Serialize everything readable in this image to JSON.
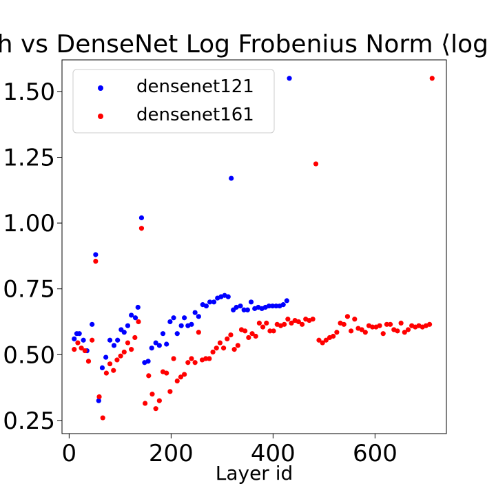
{
  "chart_data": {
    "type": "scatter",
    "title": "th vs DenseNet Log Frobenius Norm ⟨log ‖",
    "xlabel": "Layer id",
    "ylabel": "",
    "xlim": [
      -14,
      740
    ],
    "ylim": [
      0.2,
      1.62
    ],
    "x_ticks": [
      0,
      200,
      400,
      600
    ],
    "x_tick_labels": [
      "0",
      "200",
      "400",
      "600"
    ],
    "y_ticks": [
      0.25,
      0.5,
      0.75,
      1.0,
      1.25,
      1.5
    ],
    "y_tick_labels": [
      "0.25",
      "0.50",
      "0.75",
      "1.00",
      "1.25",
      "1.50"
    ],
    "grid": false,
    "legend_position": "top-left",
    "series": [
      {
        "name": "densenet121",
        "color": "#0000ff",
        "points": [
          [
            10,
            0.56
          ],
          [
            15,
            0.58
          ],
          [
            20,
            0.58
          ],
          [
            28,
            0.555
          ],
          [
            35,
            0.515
          ],
          [
            45,
            0.615
          ],
          [
            52,
            0.88
          ],
          [
            58,
            0.325
          ],
          [
            65,
            0.45
          ],
          [
            72,
            0.49
          ],
          [
            80,
            0.555
          ],
          [
            88,
            0.535
          ],
          [
            95,
            0.555
          ],
          [
            102,
            0.595
          ],
          [
            108,
            0.585
          ],
          [
            115,
            0.61
          ],
          [
            122,
            0.65
          ],
          [
            130,
            0.64
          ],
          [
            135,
            0.68
          ],
          [
            142,
            1.02
          ],
          [
            148,
            0.47
          ],
          [
            155,
            0.475
          ],
          [
            162,
            0.525
          ],
          [
            170,
            0.545
          ],
          [
            177,
            0.535
          ],
          [
            184,
            0.58
          ],
          [
            191,
            0.54
          ],
          [
            198,
            0.625
          ],
          [
            205,
            0.64
          ],
          [
            212,
            0.58
          ],
          [
            220,
            0.61
          ],
          [
            226,
            0.64
          ],
          [
            233,
            0.61
          ],
          [
            240,
            0.615
          ],
          [
            247,
            0.66
          ],
          [
            254,
            0.645
          ],
          [
            262,
            0.69
          ],
          [
            269,
            0.685
          ],
          [
            276,
            0.7
          ],
          [
            284,
            0.7
          ],
          [
            291,
            0.715
          ],
          [
            298,
            0.72
          ],
          [
            305,
            0.725
          ],
          [
            312,
            0.72
          ],
          [
            318,
            1.17
          ],
          [
            322,
            0.67
          ],
          [
            328,
            0.68
          ],
          [
            336,
            0.685
          ],
          [
            343,
            0.67
          ],
          [
            350,
            0.67
          ],
          [
            357,
            0.7
          ],
          [
            364,
            0.675
          ],
          [
            371,
            0.68
          ],
          [
            378,
            0.675
          ],
          [
            385,
            0.68
          ],
          [
            392,
            0.685
          ],
          [
            399,
            0.685
          ],
          [
            406,
            0.685
          ],
          [
            413,
            0.685
          ],
          [
            420,
            0.69
          ],
          [
            427,
            0.705
          ],
          [
            432,
            1.55
          ]
        ]
      },
      {
        "name": "densenet161",
        "color": "#ff0000",
        "points": [
          [
            10,
            0.52
          ],
          [
            17,
            0.545
          ],
          [
            24,
            0.525
          ],
          [
            31,
            0.515
          ],
          [
            38,
            0.475
          ],
          [
            45,
            0.555
          ],
          [
            52,
            0.855
          ],
          [
            59,
            0.34
          ],
          [
            66,
            0.26
          ],
          [
            73,
            0.43
          ],
          [
            80,
            0.465
          ],
          [
            87,
            0.44
          ],
          [
            94,
            0.48
          ],
          [
            101,
            0.495
          ],
          [
            108,
            0.51
          ],
          [
            115,
            0.545
          ],
          [
            122,
            0.52
          ],
          [
            129,
            0.565
          ],
          [
            136,
            0.625
          ],
          [
            142,
            0.98
          ],
          [
            149,
            0.315
          ],
          [
            156,
            0.42
          ],
          [
            163,
            0.35
          ],
          [
            170,
            0.295
          ],
          [
            177,
            0.325
          ],
          [
            184,
            0.435
          ],
          [
            191,
            0.43
          ],
          [
            198,
            0.36
          ],
          [
            205,
            0.485
          ],
          [
            212,
            0.4
          ],
          [
            219,
            0.415
          ],
          [
            226,
            0.425
          ],
          [
            233,
            0.47
          ],
          [
            240,
            0.485
          ],
          [
            247,
            0.47
          ],
          [
            254,
            0.585
          ],
          [
            261,
            0.48
          ],
          [
            268,
            0.485
          ],
          [
            275,
            0.485
          ],
          [
            282,
            0.51
          ],
          [
            289,
            0.525
          ],
          [
            296,
            0.545
          ],
          [
            303,
            0.525
          ],
          [
            310,
            0.56
          ],
          [
            317,
            0.575
          ],
          [
            324,
            0.52
          ],
          [
            331,
            0.535
          ],
          [
            338,
            0.595
          ],
          [
            345,
            0.59
          ],
          [
            352,
            0.565
          ],
          [
            359,
            0.58
          ],
          [
            366,
            0.57
          ],
          [
            373,
            0.62
          ],
          [
            380,
            0.605
          ],
          [
            387,
            0.62
          ],
          [
            394,
            0.59
          ],
          [
            401,
            0.59
          ],
          [
            408,
            0.615
          ],
          [
            415,
            0.61
          ],
          [
            422,
            0.615
          ],
          [
            429,
            0.635
          ],
          [
            436,
            0.62
          ],
          [
            443,
            0.63
          ],
          [
            450,
            0.625
          ],
          [
            457,
            0.615
          ],
          [
            464,
            0.635
          ],
          [
            471,
            0.63
          ],
          [
            478,
            0.635
          ],
          [
            484,
            1.225
          ],
          [
            490,
            0.555
          ],
          [
            497,
            0.545
          ],
          [
            504,
            0.555
          ],
          [
            511,
            0.565
          ],
          [
            518,
            0.57
          ],
          [
            525,
            0.585
          ],
          [
            532,
            0.62
          ],
          [
            539,
            0.615
          ],
          [
            546,
            0.645
          ],
          [
            553,
            0.59
          ],
          [
            560,
            0.635
          ],
          [
            567,
            0.6
          ],
          [
            574,
            0.595
          ],
          [
            581,
            0.585
          ],
          [
            588,
            0.61
          ],
          [
            595,
            0.605
          ],
          [
            602,
            0.605
          ],
          [
            609,
            0.61
          ],
          [
            616,
            0.58
          ],
          [
            623,
            0.615
          ],
          [
            630,
            0.615
          ],
          [
            637,
            0.595
          ],
          [
            644,
            0.59
          ],
          [
            651,
            0.62
          ],
          [
            658,
            0.585
          ],
          [
            665,
            0.595
          ],
          [
            672,
            0.61
          ],
          [
            679,
            0.605
          ],
          [
            686,
            0.61
          ],
          [
            693,
            0.605
          ],
          [
            700,
            0.61
          ],
          [
            707,
            0.615
          ],
          [
            712,
            1.55
          ]
        ]
      }
    ]
  }
}
